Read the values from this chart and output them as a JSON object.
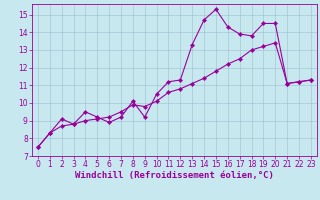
{
  "xlabel": "Windchill (Refroidissement éolien,°C)",
  "xlim": [
    -0.5,
    23.5
  ],
  "ylim": [
    7,
    15.6
  ],
  "xticks": [
    0,
    1,
    2,
    3,
    4,
    5,
    6,
    7,
    8,
    9,
    10,
    11,
    12,
    13,
    14,
    15,
    16,
    17,
    18,
    19,
    20,
    21,
    22,
    23
  ],
  "yticks": [
    7,
    8,
    9,
    10,
    11,
    12,
    13,
    14,
    15
  ],
  "line1_x": [
    0,
    1,
    2,
    3,
    4,
    5,
    6,
    7,
    8,
    9,
    10,
    11,
    12,
    13,
    14,
    15,
    16,
    17,
    18,
    19,
    20,
    21,
    22,
    23
  ],
  "line1_y": [
    7.5,
    8.3,
    9.1,
    8.8,
    9.5,
    9.2,
    8.9,
    9.2,
    10.1,
    9.2,
    10.5,
    11.2,
    11.3,
    13.3,
    14.7,
    15.3,
    14.3,
    13.9,
    13.8,
    14.5,
    14.5,
    11.1,
    11.2,
    11.3
  ],
  "line2_x": [
    0,
    1,
    2,
    3,
    4,
    5,
    6,
    7,
    8,
    9,
    10,
    11,
    12,
    13,
    14,
    15,
    16,
    17,
    18,
    19,
    20,
    21,
    22,
    23
  ],
  "line2_y": [
    7.5,
    8.3,
    8.7,
    8.8,
    9.0,
    9.1,
    9.2,
    9.5,
    9.9,
    9.8,
    10.1,
    10.6,
    10.8,
    11.1,
    11.4,
    11.8,
    12.2,
    12.5,
    13.0,
    13.2,
    13.4,
    11.1,
    11.2,
    11.3
  ],
  "line_color": "#990099",
  "bg_color": "#c8e8f0",
  "grid_color": "#9bbfcf",
  "marker": "D",
  "marker_size": 2.2,
  "linewidth": 0.8,
  "xlabel_fontsize": 6.5,
  "tick_fontsize": 5.5
}
